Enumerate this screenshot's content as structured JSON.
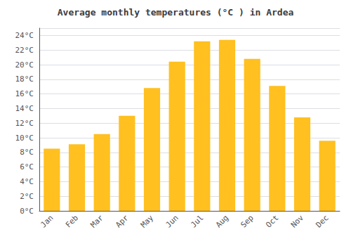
{
  "chart_data": {
    "type": "bar",
    "title": "Average monthly temperatures (°C ) in Ardea",
    "categories": [
      "Jan",
      "Feb",
      "Mar",
      "Apr",
      "May",
      "Jun",
      "Jul",
      "Aug",
      "Sep",
      "Oct",
      "Nov",
      "Dec"
    ],
    "values": [
      8.5,
      9.1,
      10.5,
      13.0,
      16.8,
      20.4,
      23.2,
      23.4,
      20.8,
      17.1,
      12.8,
      9.6
    ],
    "color": "#FFC020",
    "ylim": [
      0,
      25
    ],
    "yticks": [
      {
        "value": 0,
        "label": "0°C"
      },
      {
        "value": 2,
        "label": "2°C"
      },
      {
        "value": 4,
        "label": "4°C"
      },
      {
        "value": 6,
        "label": "6°C"
      },
      {
        "value": 8,
        "label": "8°C"
      },
      {
        "value": 10,
        "label": "10°C"
      },
      {
        "value": 12,
        "label": "12°C"
      },
      {
        "value": 14,
        "label": "14°C"
      },
      {
        "value": 16,
        "label": "16°C"
      },
      {
        "value": 18,
        "label": "18°C"
      },
      {
        "value": 20,
        "label": "20°C"
      },
      {
        "value": 22,
        "label": "22°C"
      },
      {
        "value": 24,
        "label": "24°C"
      }
    ],
    "grid": true
  }
}
